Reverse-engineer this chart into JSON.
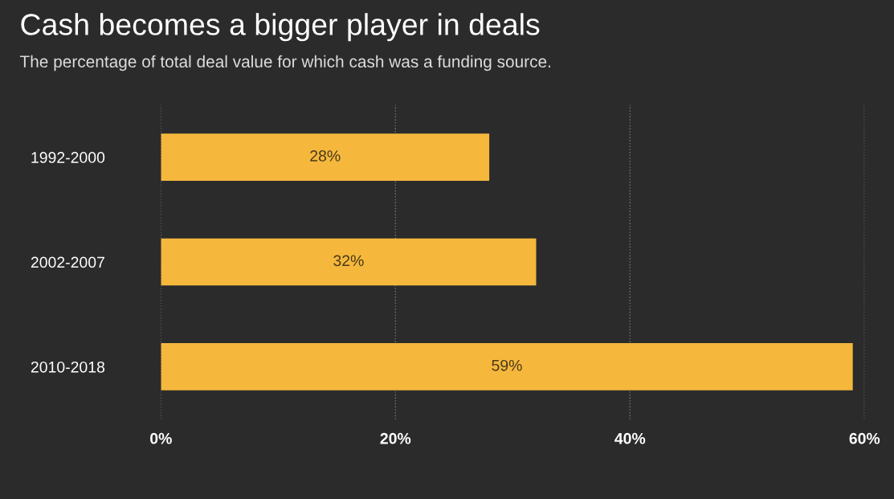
{
  "chart_data": {
    "type": "bar",
    "orientation": "horizontal",
    "title": "Cash becomes a bigger player in deals",
    "subtitle": "The percentage of total deal value for which cash was a funding source.",
    "categories": [
      "1992-2000",
      "2002-2007",
      "2010-2018"
    ],
    "values": [
      28,
      32,
      59
    ],
    "value_labels": [
      "28%",
      "32%",
      "59%"
    ],
    "color": "#f5b83d",
    "xlim": [
      0,
      60
    ],
    "xticks": [
      {
        "value": 0,
        "label": "0%"
      },
      {
        "value": 20,
        "label": "20%"
      },
      {
        "value": 40,
        "label": "40%"
      },
      {
        "value": 60,
        "label": "60%"
      }
    ],
    "grid": "x",
    "legend": false
  }
}
